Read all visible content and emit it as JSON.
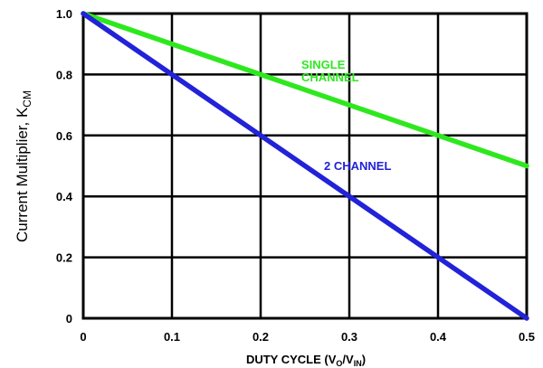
{
  "chart_data": {
    "type": "line",
    "xlabel": "DUTY CYCLE (Vo/VIN)",
    "xlabel_parts": [
      "DUTY CYCLE (V",
      "O",
      "/V",
      "IN",
      ")"
    ],
    "ylabel": "Current Multiplier, KCM",
    "ylabel_parts": [
      "Current Multiplier, K",
      "CM"
    ],
    "xlim": [
      0,
      0.5
    ],
    "ylim": [
      0,
      1.0
    ],
    "x_ticks": [
      "0",
      "0.1",
      "0.2",
      "0.3",
      "0.4",
      "0.5"
    ],
    "y_ticks": [
      "0",
      "0.2",
      "0.4",
      "0.6",
      "0.8",
      "1.0"
    ],
    "grid": true,
    "series": [
      {
        "name": "SINGLE CHANNEL",
        "color": "#2ee81e",
        "x": [
          0,
          0.5
        ],
        "y": [
          1.0,
          0.5
        ]
      },
      {
        "name": "2 CHANNEL",
        "color": "#2222d8",
        "x": [
          0,
          0.5
        ],
        "y": [
          1.0,
          0.0
        ]
      }
    ],
    "annotations": [
      {
        "lines": [
          "SINGLE",
          "CHANNEL"
        ],
        "series": "SINGLE CHANNEL",
        "color": "#2ee81e"
      },
      {
        "lines": [
          "2 CHANNEL"
        ],
        "series": "2 CHANNEL",
        "color": "#2222d8"
      }
    ]
  }
}
